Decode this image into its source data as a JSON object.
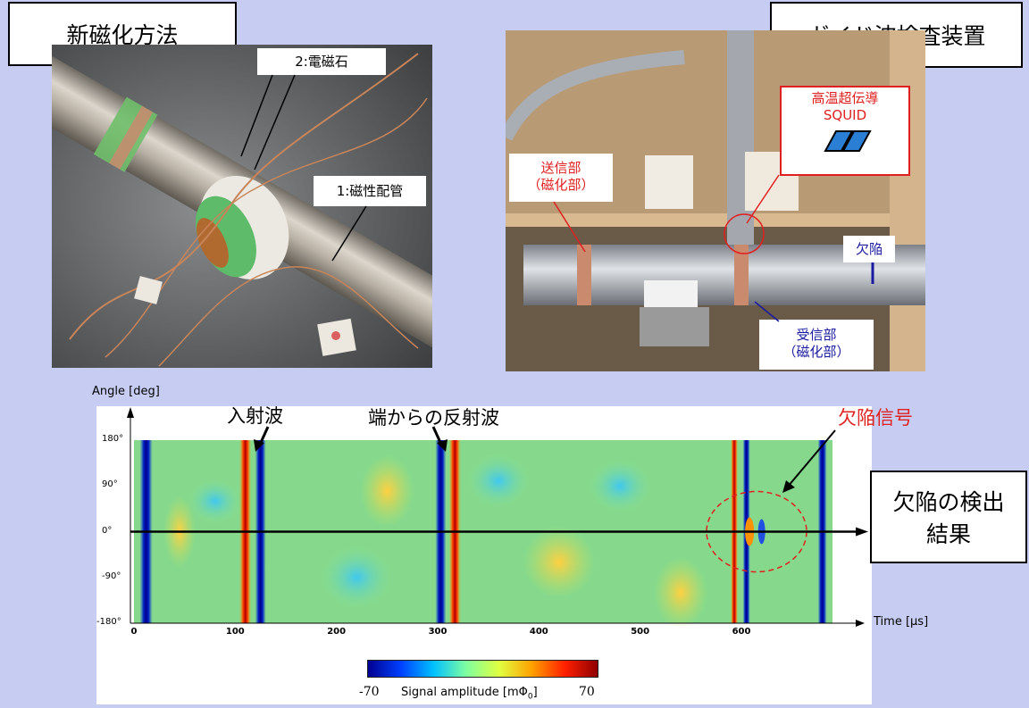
{
  "titles": {
    "left": "新磁化方法",
    "right": "ガイド波検査装置",
    "result_line1": "欠陥の検出",
    "result_line2": "結果"
  },
  "left_photo": {
    "label_electromagnet": "2:電磁石",
    "label_pipe": "1:磁性配管"
  },
  "right_photo": {
    "squid_line1": "高温超伝導",
    "squid_line2": "SQUID",
    "transmitter_line1": "送信部",
    "transmitter_line2": "（磁化部）",
    "receiver_line1": "受信部",
    "receiver_line2": "（磁化部）",
    "defect": "欠陥"
  },
  "chart_annotations": {
    "incident_wave": "入射波",
    "end_reflection": "端からの反射波",
    "defect_signal": "欠陥信号"
  },
  "chart_data": {
    "type": "heatmap",
    "ylabel": "Angle [deg]",
    "xlabel": "Time [μs]",
    "xlim": [
      0,
      690
    ],
    "ylim": [
      -180,
      180
    ],
    "x_ticks": [
      "0",
      "100",
      "200",
      "300",
      "400",
      "500",
      "600"
    ],
    "y_ticks": [
      "180°",
      "90°",
      "0°",
      "-90°",
      "-180°"
    ],
    "colorbar": {
      "min": "-70",
      "max": "70",
      "label": "Signal amplitude [mΦ",
      "label_sub": "0",
      "label_end": "]"
    },
    "colors": {
      "low": "#0000aa",
      "mid": "#7fd88a",
      "high": "#c00000"
    }
  }
}
